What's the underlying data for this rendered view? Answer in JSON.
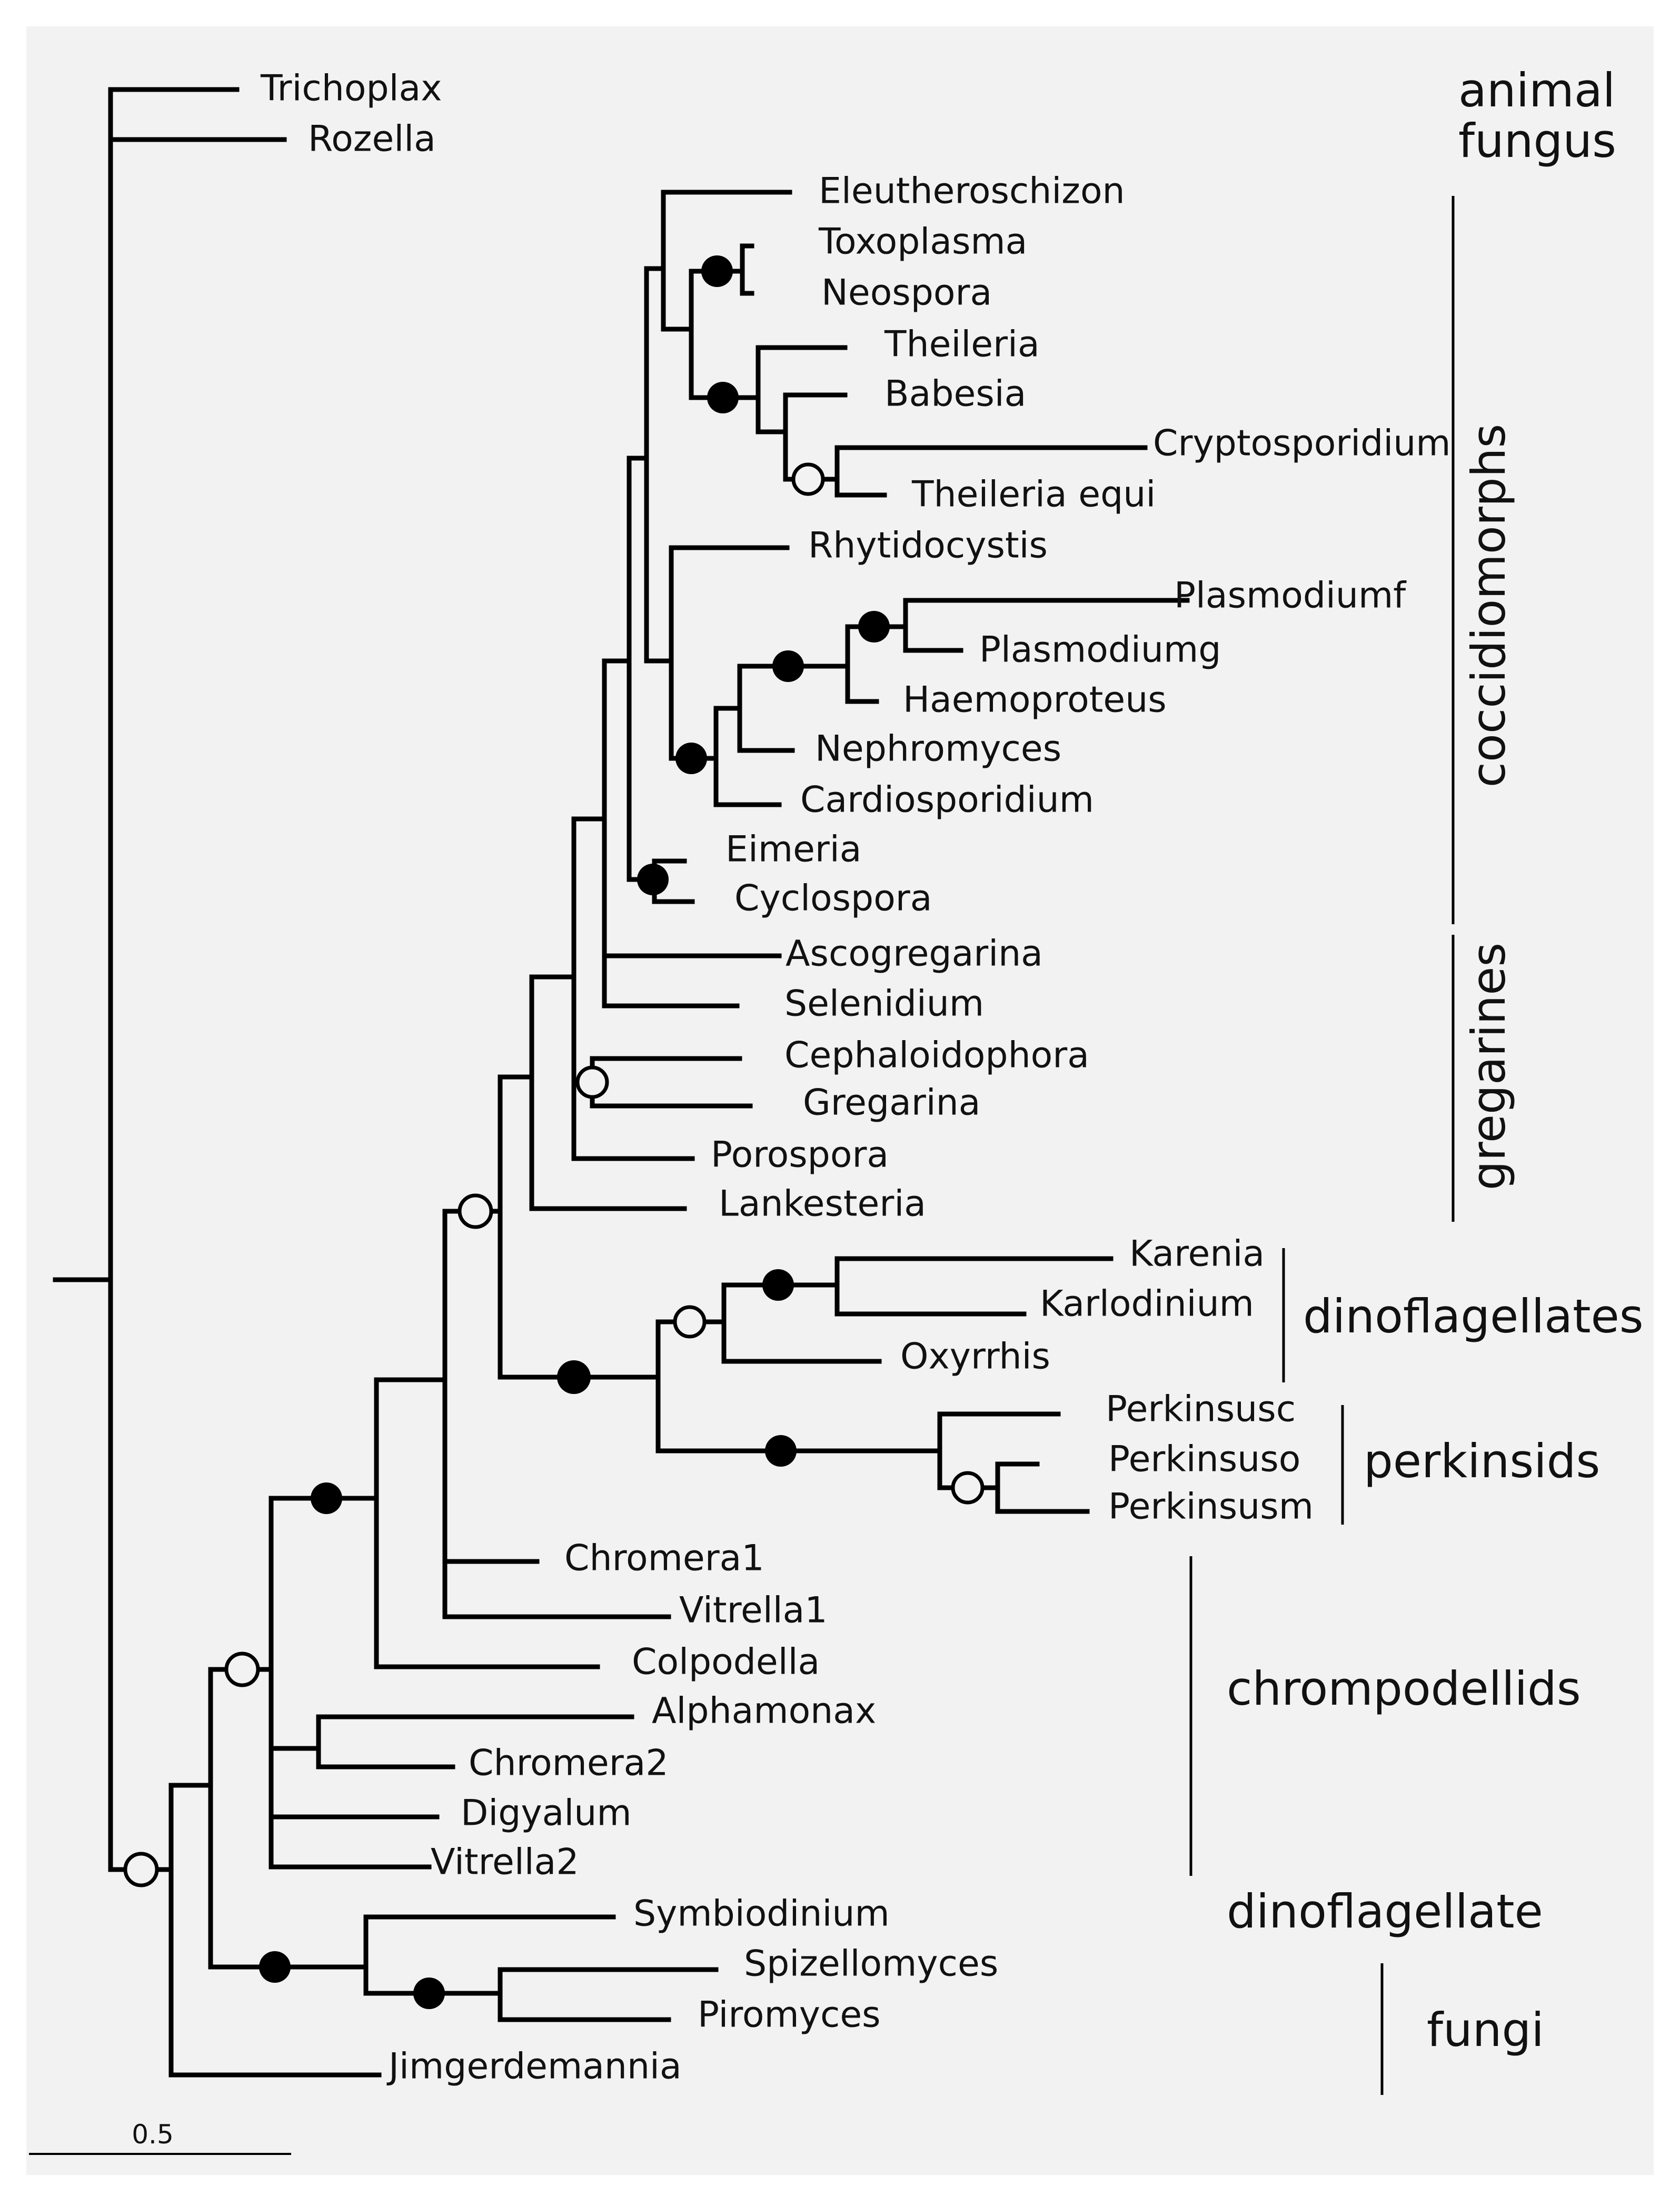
{
  "figure": {
    "background_color": "#f2f2f2",
    "scale_bar": {
      "label": "0.5"
    },
    "taxa": {
      "trichoplax": "Trichoplax",
      "rozella": "Rozella",
      "eleutheroschizon": "Eleutheroschizon",
      "toxoplasma": "Toxoplasma",
      "neospora": "Neospora",
      "theileria": "Theileria",
      "babesia": "Babesia",
      "cryptosporidium": "Cryptosporidium",
      "theileria_equi": "Theileria equi",
      "rhytidocystis": "Rhytidocystis",
      "plasmodiumf": "Plasmodiumf",
      "plasmodiumg": "Plasmodiumg",
      "haemoproteus": "Haemoproteus",
      "nephromyces": "Nephromyces",
      "cardiosporidium": "Cardiosporidium",
      "eimeria": "Eimeria",
      "cyclospora": "Cyclospora",
      "ascogregarina": "Ascogregarina",
      "selenidium": "Selenidium",
      "cephaloidophora": "Cephaloidophora",
      "gregarina": "Gregarina",
      "porospora": "Porospora",
      "lankesteria": "Lankesteria",
      "karenia": "Karenia",
      "karlodinium": "Karlodinium",
      "oxyrrhis": "Oxyrrhis",
      "perkinsusc": "Perkinsusc",
      "perkinsuso": "Perkinsuso",
      "perkinsusm": "Perkinsusm",
      "chromera1": "Chromera1",
      "vitrella1": "Vitrella1",
      "colpodella": "Colpodella",
      "alphamonax": "Alphamonax",
      "chromera2": "Chromera2",
      "digyalum": "Digyalum",
      "vitrella2": "Vitrella2",
      "symbiodinium": "Symbiodinium",
      "spizellomyces": "Spizellomyces",
      "piromyces": "Piromyces",
      "jimgerdemannia": "Jimgerdemannia"
    },
    "groups": {
      "animal": "animal",
      "fungus": "fungus",
      "coccidiomorphs": "coccidiomorphs",
      "gregarines": "gregarines",
      "dinoflagellates": "dinoflagellates",
      "perkinsids": "perkinsids",
      "chrompodellids": "chrompodellids",
      "dinoflagellate": "dinoflagellate",
      "fungi": "fungi"
    },
    "node_legend": {
      "filled": "filled-circle",
      "open": "open-circle"
    }
  }
}
